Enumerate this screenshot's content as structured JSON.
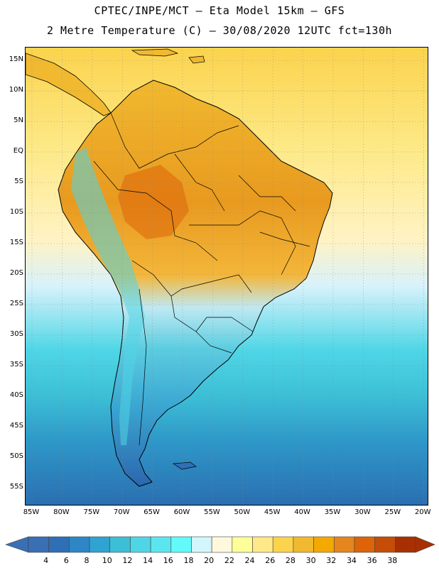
{
  "header": {
    "title_line1": "CPTEC/INPE/MCT –  Eta Model 15km – GFS",
    "title_line2": "2 Metre Temperature (C) – 30/08/2020 12UTC fct=130h"
  },
  "map": {
    "lat_labels": [
      "15N",
      "10N",
      "5N",
      "EQ",
      "5S",
      "10S",
      "15S",
      "20S",
      "25S",
      "30S",
      "35S",
      "40S",
      "45S",
      "50S",
      "55S"
    ],
    "lon_labels": [
      "85W",
      "80W",
      "75W",
      "70W",
      "65W",
      "60W",
      "55W",
      "50W",
      "45W",
      "40W",
      "35W",
      "30W",
      "25W",
      "20W"
    ],
    "ocean_colors": [
      "#fbd34d",
      "#fde987",
      "#fff3c4",
      "#d8f2fb",
      "#4fd6e6",
      "#3cbfd6",
      "#2e97c8",
      "#2a6eb0"
    ]
  },
  "colorbar": {
    "labels": [
      "4",
      "6",
      "8",
      "10",
      "12",
      "14",
      "16",
      "18",
      "20",
      "22",
      "24",
      "26",
      "28",
      "30",
      "32",
      "34",
      "36",
      "38"
    ],
    "colors": [
      "#3a6fb5",
      "#2e6fb5",
      "#2e86c6",
      "#2fa3d1",
      "#3cbfd6",
      "#4fd6e6",
      "#5be6ef",
      "#63fafc",
      "#d2f6fc",
      "#fff8dc",
      "#ffff99",
      "#fde987",
      "#fbd34d",
      "#f1b92f",
      "#f3a900",
      "#e4851d",
      "#dd6409",
      "#c54d08",
      "#a83000"
    ]
  }
}
